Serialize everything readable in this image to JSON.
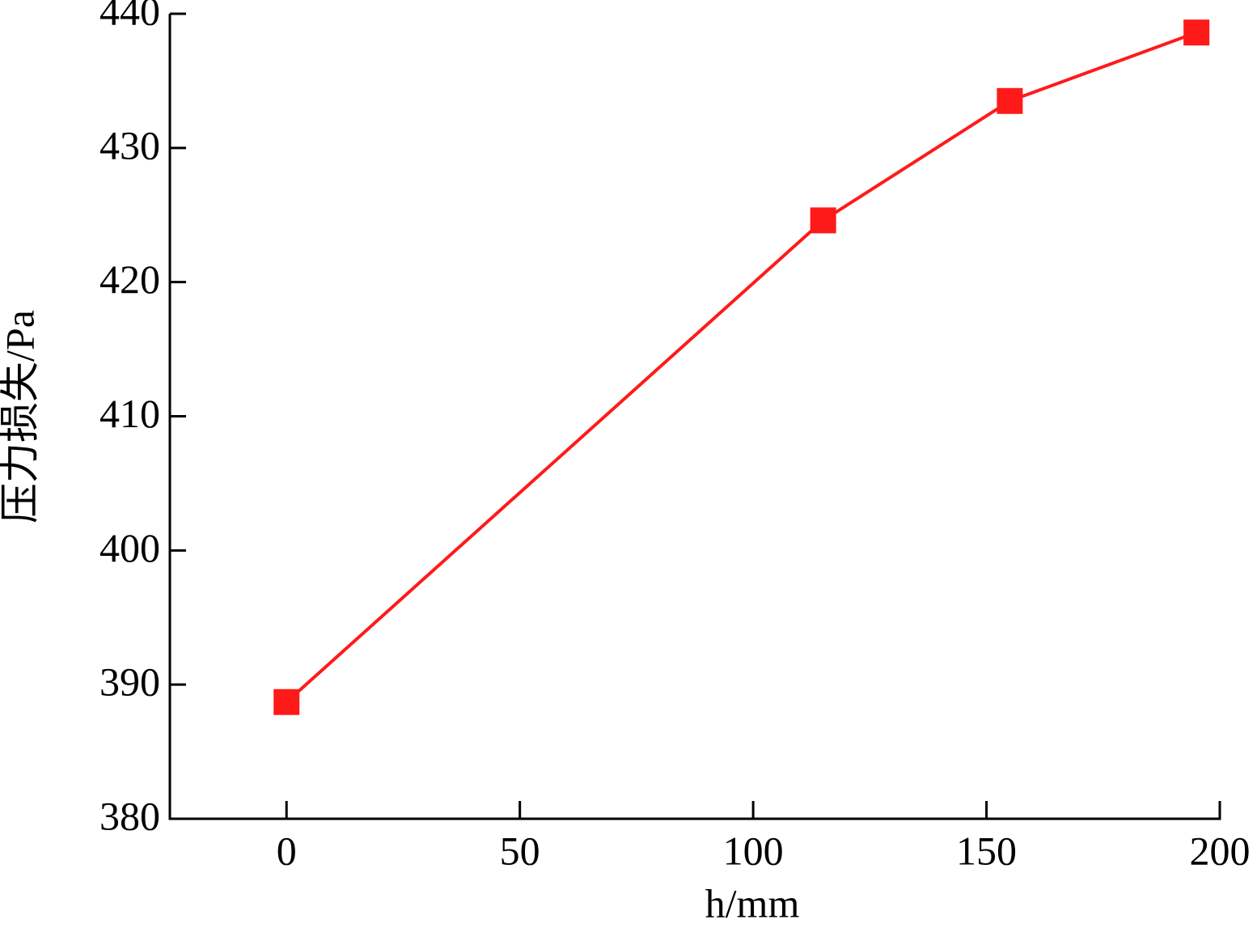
{
  "chart_data": {
    "type": "line",
    "x_label": "h/mm",
    "y_label": "压力损失/Pa",
    "x": [
      0,
      115,
      155,
      195
    ],
    "series": [
      {
        "color": "#ff1a1a",
        "values": [
          388.7,
          424.6,
          433.5,
          438.6
        ]
      }
    ],
    "xlim": [
      -25,
      200
    ],
    "xticks": [
      0,
      50,
      100,
      150,
      200
    ],
    "ylim": [
      380,
      440
    ],
    "yticks": [
      380,
      390,
      400,
      410,
      420,
      430,
      440
    ],
    "grid": false
  }
}
